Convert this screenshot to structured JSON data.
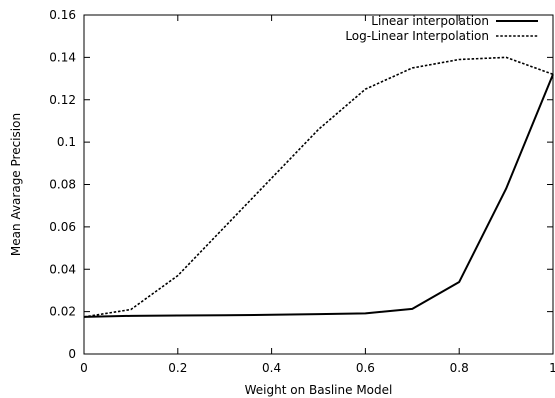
{
  "chart_data": {
    "type": "line",
    "title": "",
    "xlabel": "Weight on Basline Model",
    "ylabel": "Mean Avarage Precision",
    "xlim": [
      0,
      1
    ],
    "ylim": [
      0,
      0.16
    ],
    "x_ticks": [
      "0",
      "0.2",
      "0.4",
      "0.6",
      "0.8",
      "1"
    ],
    "y_ticks": [
      "0",
      "0.02",
      "0.04",
      "0.06",
      "0.08",
      "0.1",
      "0.12",
      "0.14",
      "0.16"
    ],
    "x_tick_values": [
      0,
      0.2,
      0.4,
      0.6,
      0.8,
      1
    ],
    "y_tick_values": [
      0,
      0.02,
      0.04,
      0.06,
      0.08,
      0.1,
      0.12,
      0.14,
      0.16
    ],
    "grid": false,
    "legend_position": "top-right",
    "series": [
      {
        "name": "Linear interpolation",
        "style": "solid",
        "color": "#000000",
        "x": [
          0,
          0.1,
          0.2,
          0.3,
          0.4,
          0.5,
          0.6,
          0.7,
          0.8,
          0.9,
          1.0
        ],
        "y": [
          0.0175,
          0.018,
          0.0182,
          0.0183,
          0.0185,
          0.0188,
          0.0192,
          0.0213,
          0.034,
          0.078,
          0.132
        ]
      },
      {
        "name": "Log-Linear Interpolation",
        "style": "dotted",
        "color": "#000000",
        "x": [
          0,
          0.1,
          0.2,
          0.3,
          0.4,
          0.5,
          0.6,
          0.7,
          0.8,
          0.9,
          1.0
        ],
        "y": [
          0.0175,
          0.021,
          0.037,
          0.06,
          0.083,
          0.106,
          0.125,
          0.135,
          0.139,
          0.14,
          0.132
        ]
      }
    ]
  }
}
